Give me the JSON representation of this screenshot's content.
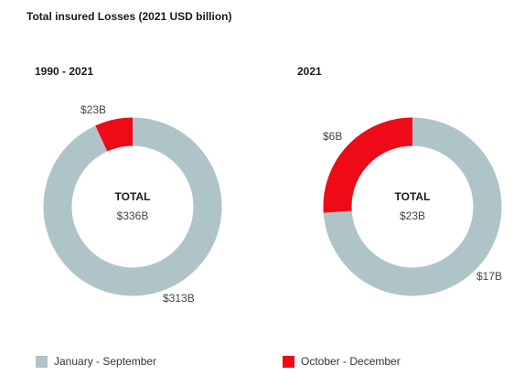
{
  "title": "Total insured Losses (2021 USD billion)",
  "colors": {
    "jan_sep": "#aec4c8",
    "oct_dec": "#ee0a17"
  },
  "legend": [
    {
      "label": "January - September",
      "color": "#aec4c8"
    },
    {
      "label": "October - December",
      "color": "#ee0a17"
    }
  ],
  "chart_data": [
    {
      "type": "pie",
      "variant": "donut",
      "title": "1990 - 2021",
      "center_label": "TOTAL",
      "center_value": "$336B",
      "slices": [
        {
          "name": "January - September",
          "value": 313,
          "label": "$313B",
          "color": "#aec4c8"
        },
        {
          "name": "October - December",
          "value": 23,
          "label": "$23B",
          "color": "#ee0a17"
        }
      ]
    },
    {
      "type": "pie",
      "variant": "donut",
      "title": "2021",
      "center_label": "TOTAL",
      "center_value": "$23B",
      "slices": [
        {
          "name": "January - September",
          "value": 17,
          "label": "$17B",
          "color": "#aec4c8"
        },
        {
          "name": "October - December",
          "value": 6,
          "label": "$6B",
          "color": "#ee0a17"
        }
      ]
    }
  ]
}
